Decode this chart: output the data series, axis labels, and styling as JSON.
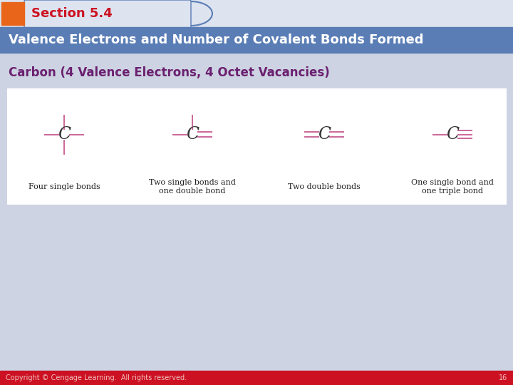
{
  "section_label": "Section 5.4",
  "title_bar_text": "Valence Electrons and Number of Covalent Bonds Formed",
  "subtitle_text": "Carbon (4 Valence Electrons, 4 Octet Vacancies)",
  "copyright_text": "Copyright © Cengage Learning.  All rights reserved.",
  "page_number": "16",
  "bg_color": "#cdd3e2",
  "header_bg_color": "#5a7db5",
  "header_light_color": "#dde3ef",
  "orange_rect_color": "#e8651a",
  "section_text_color": "#cc1122",
  "title_text_color": "#ffffff",
  "subtitle_text_color": "#6b2070",
  "footer_bg_color": "#cc1122",
  "footer_text_color": "#f0c0c0",
  "white_box_color": "#ffffff",
  "bond_line_color": "#cc6699",
  "C_color": "#333333",
  "label_color": "#222222",
  "bond_diagrams": [
    {
      "label": "Four single bonds",
      "bonds": "single_cross"
    },
    {
      "label": "Two single bonds and\none double bond",
      "bonds": "single_double_cross"
    },
    {
      "label": "Two double bonds",
      "bonds": "double_cross"
    },
    {
      "label": "One single bond and\none triple bond",
      "bonds": "single_triple"
    }
  ]
}
